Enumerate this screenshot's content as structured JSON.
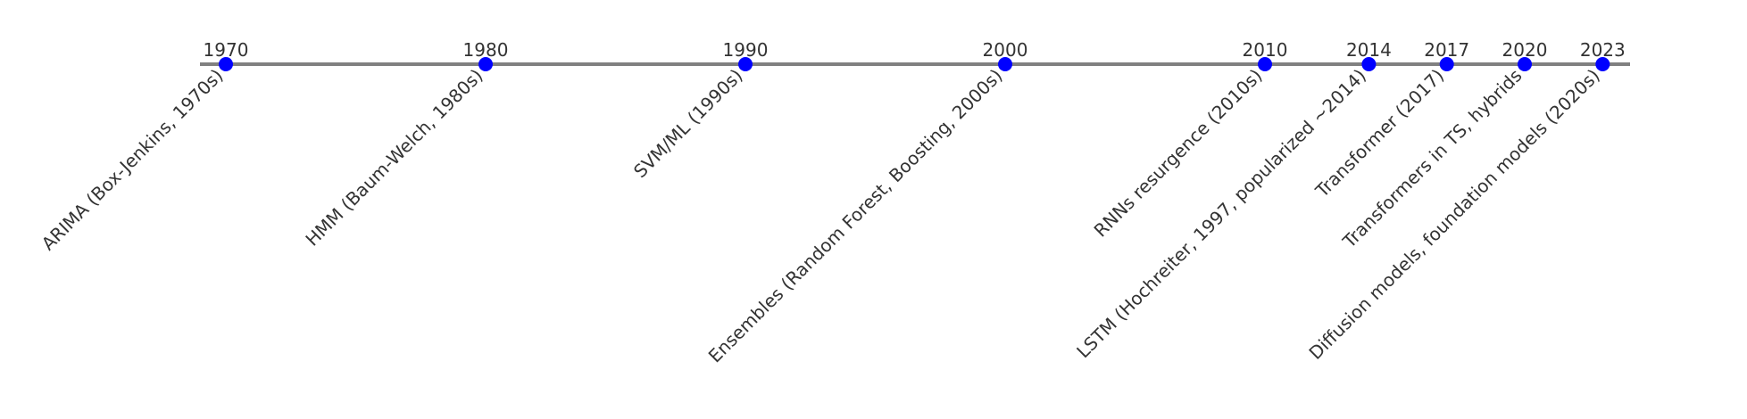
{
  "timeline": {
    "line_color": "#808080",
    "marker_color": "#0000ff",
    "text_color": "#333333",
    "events": [
      {
        "year": "1970",
        "label": "ARIMA (Box-Jenkins, 1970s)"
      },
      {
        "year": "1980",
        "label": "HMM (Baum-Welch, 1980s)"
      },
      {
        "year": "1990",
        "label": "SVM/ML (1990s)"
      },
      {
        "year": "2000",
        "label": "Ensembles (Random Forest, Boosting, 2000s)"
      },
      {
        "year": "2010",
        "label": "RNNs resurgence (2010s)"
      },
      {
        "year": "2014",
        "label": "LSTM (Hochreiter, 1997, popularized ~2014)"
      },
      {
        "year": "2017",
        "label": "Transformer (2017)"
      },
      {
        "year": "2020",
        "label": "Transformers in TS, hybrids"
      },
      {
        "year": "2023",
        "label": "Diffusion models, foundation models (2020s)"
      }
    ]
  }
}
